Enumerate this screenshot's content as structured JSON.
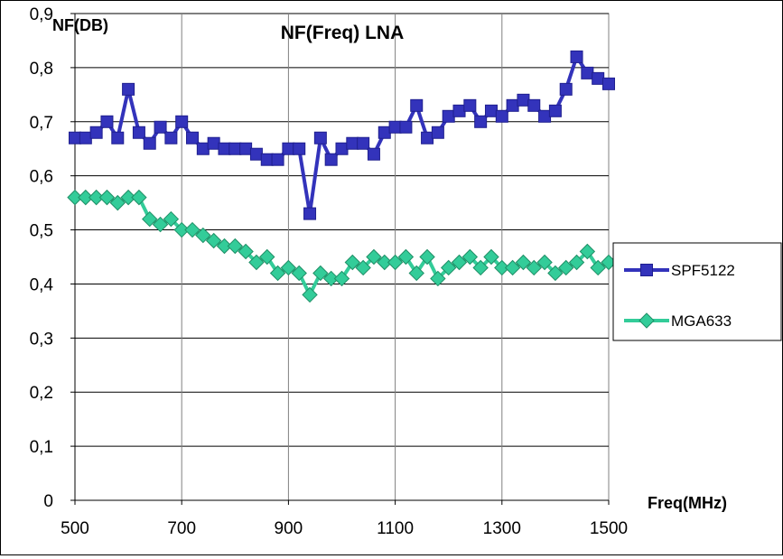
{
  "chart_data": {
    "type": "line",
    "title": "NF(Freq) LNA",
    "xlabel": "Freq(MHz)",
    "ylabel": "NF(DB)",
    "xlim": [
      500,
      1500
    ],
    "ylim": [
      0,
      0.9
    ],
    "x_ticks": [
      "500",
      "700",
      "900",
      "1100",
      "1300",
      "1500"
    ],
    "y_ticks": [
      "0",
      "0,1",
      "0,2",
      "0,3",
      "0,4",
      "0,5",
      "0,6",
      "0,7",
      "0,8",
      "0,9"
    ],
    "grid": true,
    "legend_position": "right",
    "x": [
      500,
      520,
      540,
      560,
      580,
      600,
      620,
      640,
      660,
      680,
      700,
      720,
      740,
      760,
      780,
      800,
      820,
      840,
      860,
      880,
      900,
      920,
      940,
      960,
      980,
      1000,
      1020,
      1040,
      1060,
      1080,
      1100,
      1120,
      1140,
      1160,
      1180,
      1200,
      1220,
      1240,
      1260,
      1280,
      1300,
      1320,
      1340,
      1360,
      1380,
      1400,
      1420,
      1440,
      1460,
      1480,
      1500
    ],
    "series": [
      {
        "name": "SPF5122",
        "color": "#3333bb",
        "marker": "square",
        "values": [
          0.67,
          0.67,
          0.68,
          0.7,
          0.67,
          0.76,
          0.68,
          0.66,
          0.69,
          0.67,
          0.7,
          0.67,
          0.65,
          0.66,
          0.65,
          0.65,
          0.65,
          0.64,
          0.63,
          0.63,
          0.65,
          0.65,
          0.53,
          0.67,
          0.63,
          0.65,
          0.66,
          0.66,
          0.64,
          0.68,
          0.69,
          0.69,
          0.73,
          0.67,
          0.68,
          0.71,
          0.72,
          0.73,
          0.7,
          0.72,
          0.71,
          0.73,
          0.74,
          0.73,
          0.71,
          0.72,
          0.76,
          0.82,
          0.79,
          0.78,
          0.77
        ]
      },
      {
        "name": "MGA633",
        "color": "#33cc99",
        "marker": "diamond",
        "values": [
          0.56,
          0.56,
          0.56,
          0.56,
          0.55,
          0.56,
          0.56,
          0.52,
          0.51,
          0.52,
          0.5,
          0.5,
          0.49,
          0.48,
          0.47,
          0.47,
          0.46,
          0.44,
          0.45,
          0.42,
          0.43,
          0.42,
          0.38,
          0.42,
          0.41,
          0.41,
          0.44,
          0.43,
          0.45,
          0.44,
          0.44,
          0.45,
          0.42,
          0.45,
          0.41,
          0.43,
          0.44,
          0.45,
          0.43,
          0.45,
          0.43,
          0.43,
          0.44,
          0.43,
          0.44,
          0.42,
          0.43,
          0.44,
          0.46,
          0.43,
          0.44
        ]
      }
    ]
  }
}
